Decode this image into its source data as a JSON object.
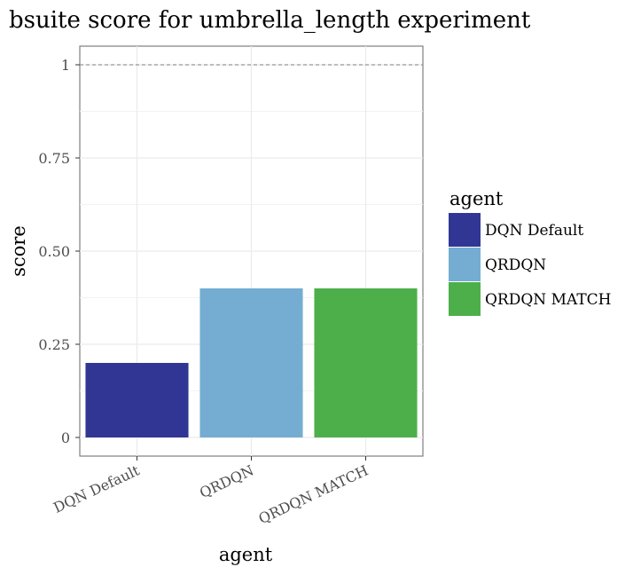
{
  "chart_data": {
    "type": "bar",
    "title": "bsuite score for umbrella_length experiment",
    "xlabel": "agent",
    "ylabel": "score",
    "categories": [
      "DQN Default",
      "QRDQN",
      "QRDQN MATCH"
    ],
    "values": [
      0.2,
      0.4,
      0.4
    ],
    "colors": [
      "#313695",
      "#74add1",
      "#4daf4a"
    ],
    "ylim": [
      -0.05,
      1.05
    ],
    "yticks": [
      0,
      0.25,
      0.5,
      0.75,
      1
    ],
    "ytick_labels": [
      "0",
      "0.25",
      "0.50",
      "0.75",
      "1"
    ],
    "reference_line": 1,
    "grid": true,
    "legend": {
      "title": "agent",
      "placement": "right",
      "entries": [
        "DQN Default",
        "QRDQN",
        "QRDQN MATCH"
      ]
    }
  }
}
